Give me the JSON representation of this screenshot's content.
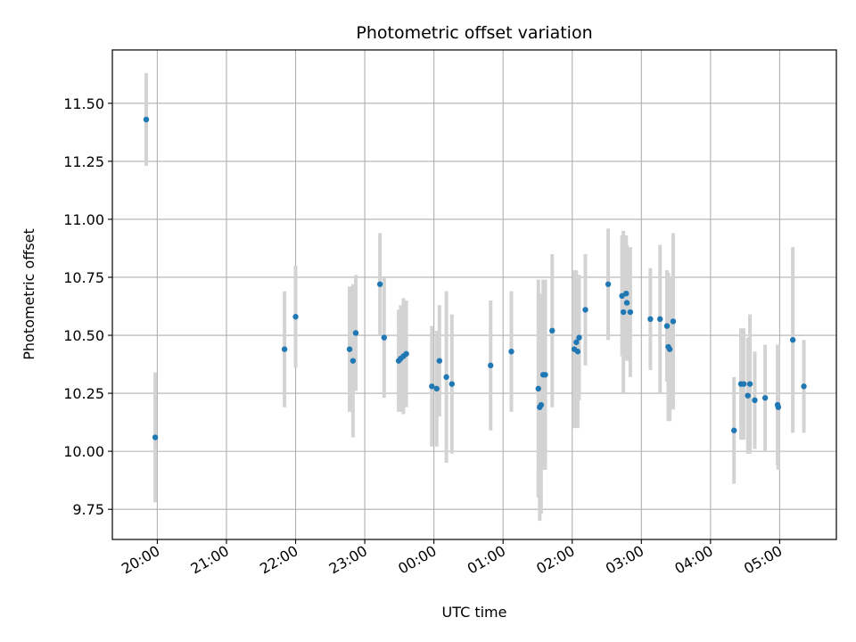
{
  "chart_data": {
    "type": "scatter",
    "title": "Photometric offset variation",
    "xlabel": "UTC time",
    "ylabel": "Photometric offset",
    "x_tick_labels": [
      "20:00",
      "21:00",
      "22:00",
      "23:00",
      "00:00",
      "01:00",
      "02:00",
      "03:00",
      "04:00",
      "05:00"
    ],
    "x_tick_hours": [
      20,
      21,
      22,
      23,
      24,
      25,
      26,
      27,
      28,
      29
    ],
    "xlim_hours": [
      19.35,
      29.82
    ],
    "y_ticks": [
      9.75,
      10.0,
      10.25,
      10.5,
      10.75,
      11.0,
      11.25,
      11.5
    ],
    "y_tick_labels": [
      "9.75",
      "10.00",
      "10.25",
      "10.50",
      "10.75",
      "11.00",
      "11.25",
      "11.50"
    ],
    "ylim": [
      9.62,
      11.73
    ],
    "grid": true,
    "colors": {
      "point": "#1f77b4",
      "errorbar": "#d3d3d3",
      "grid": "#b0b0b0"
    },
    "series": [
      {
        "x_hours": [
          19.84,
          19.97,
          21.84,
          22.0,
          22.78,
          22.83,
          22.87,
          23.22,
          23.28,
          23.49,
          23.52,
          23.56,
          23.6,
          23.97,
          24.04,
          24.08,
          24.18,
          24.26,
          24.82,
          25.12,
          25.51,
          25.53,
          25.55,
          25.58,
          25.61,
          25.71,
          26.03,
          26.06,
          26.08,
          26.1,
          26.19,
          26.52,
          26.72,
          26.74,
          26.78,
          26.79,
          26.84,
          27.13,
          27.27,
          27.37,
          27.39,
          27.41,
          27.46,
          28.34,
          28.44,
          28.48,
          28.54,
          28.57,
          28.64,
          28.79,
          28.97,
          28.98,
          29.19,
          29.35
        ],
        "y": [
          11.43,
          10.06,
          10.44,
          10.58,
          10.44,
          10.39,
          10.51,
          10.72,
          10.49,
          10.39,
          10.4,
          10.41,
          10.42,
          10.28,
          10.27,
          10.39,
          10.32,
          10.29,
          10.37,
          10.43,
          10.27,
          10.19,
          10.2,
          10.33,
          10.33,
          10.52,
          10.44,
          10.47,
          10.43,
          10.49,
          10.61,
          10.72,
          10.67,
          10.6,
          10.68,
          10.64,
          10.6,
          10.57,
          10.57,
          10.54,
          10.45,
          10.44,
          10.56,
          10.09,
          10.29,
          10.29,
          10.24,
          10.29,
          10.22,
          10.23,
          10.2,
          10.19,
          10.48,
          10.28
        ],
        "err": [
          0.2,
          0.28,
          0.25,
          0.22,
          0.27,
          0.33,
          0.25,
          0.22,
          0.26,
          0.22,
          0.23,
          0.25,
          0.23,
          0.26,
          0.25,
          0.24,
          0.37,
          0.3,
          0.28,
          0.26,
          0.47,
          0.49,
          0.47,
          0.41,
          0.41,
          0.33,
          0.34,
          0.31,
          0.33,
          0.27,
          0.24,
          0.24,
          0.26,
          0.35,
          0.25,
          0.25,
          0.28,
          0.22,
          0.32,
          0.24,
          0.32,
          0.31,
          0.38,
          0.23,
          0.24,
          0.24,
          0.25,
          0.3,
          0.21,
          0.23,
          0.26,
          0.27,
          0.4,
          0.2
        ]
      }
    ]
  }
}
